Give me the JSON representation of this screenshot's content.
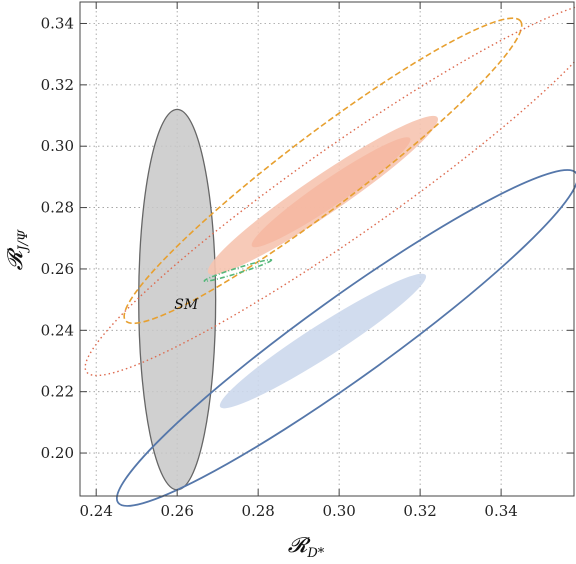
{
  "chart_data": {
    "type": "contour",
    "xlabel": "𝓡",
    "xlabel_sub": "D*",
    "ylabel": "𝓡",
    "ylabel_sub": "J/Ψ",
    "xlim": [
      0.236,
      0.358
    ],
    "ylim": [
      0.186,
      0.347
    ],
    "xticks": [
      0.24,
      0.26,
      0.28,
      0.3,
      0.32,
      0.34
    ],
    "xtick_labels": [
      "0.24",
      "0.26",
      "0.28",
      "0.30",
      "0.32",
      "0.34"
    ],
    "yticks": [
      0.2,
      0.22,
      0.24,
      0.26,
      0.28,
      0.3,
      0.32,
      0.34
    ],
    "ytick_labels": [
      "0.20",
      "0.22",
      "0.24",
      "0.26",
      "0.28",
      "0.30",
      "0.32",
      "0.34"
    ],
    "grid": true,
    "annotation": {
      "text": "SM",
      "x": 0.261,
      "y": 0.247
    },
    "regions": [
      {
        "kind": "ellipse-filled",
        "center": [
          0.26,
          0.25
        ],
        "rx": 0.0095,
        "ry": 0.062,
        "color": "#c8c8c8",
        "stroke": "#666666"
      },
      {
        "kind": "ellipse-filled",
        "center": [
          0.296,
          0.2365
        ],
        "rx": 0.026,
        "ry": 0.022,
        "color": "#ccd8ec",
        "stroke": "none"
      },
      {
        "kind": "ellipse-outline-solid",
        "center": [
          0.302,
          0.2375
        ],
        "rx": 0.058,
        "ry": 0.055,
        "color": "#5577aa"
      },
      {
        "kind": "ellipse-filled",
        "center": [
          0.296,
          0.284
        ],
        "rx": 0.029,
        "ry": 0.026,
        "color": "#f6c4b0",
        "stroke": "none"
      },
      {
        "kind": "ellipse-filled-inner",
        "center": [
          0.298,
          0.285
        ],
        "rx": 0.02,
        "ry": 0.018,
        "color": "#f5b8a2",
        "stroke": "none"
      },
      {
        "kind": "ellipse-outline-dashed",
        "center": [
          0.296,
          0.292
        ],
        "rx": 0.05,
        "ry": 0.05,
        "color": "#e7a030"
      },
      {
        "kind": "ellipse-outline-dotted",
        "center": [
          0.302,
          0.286
        ],
        "rx": 0.066,
        "ry": 0.061,
        "color": "#dd6a4e"
      },
      {
        "kind": "ellipse-outline-dashdot",
        "center": [
          0.275,
          0.2595
        ],
        "rx": 0.0085,
        "ry": 0.0035,
        "color": "#55b77a"
      }
    ]
  }
}
